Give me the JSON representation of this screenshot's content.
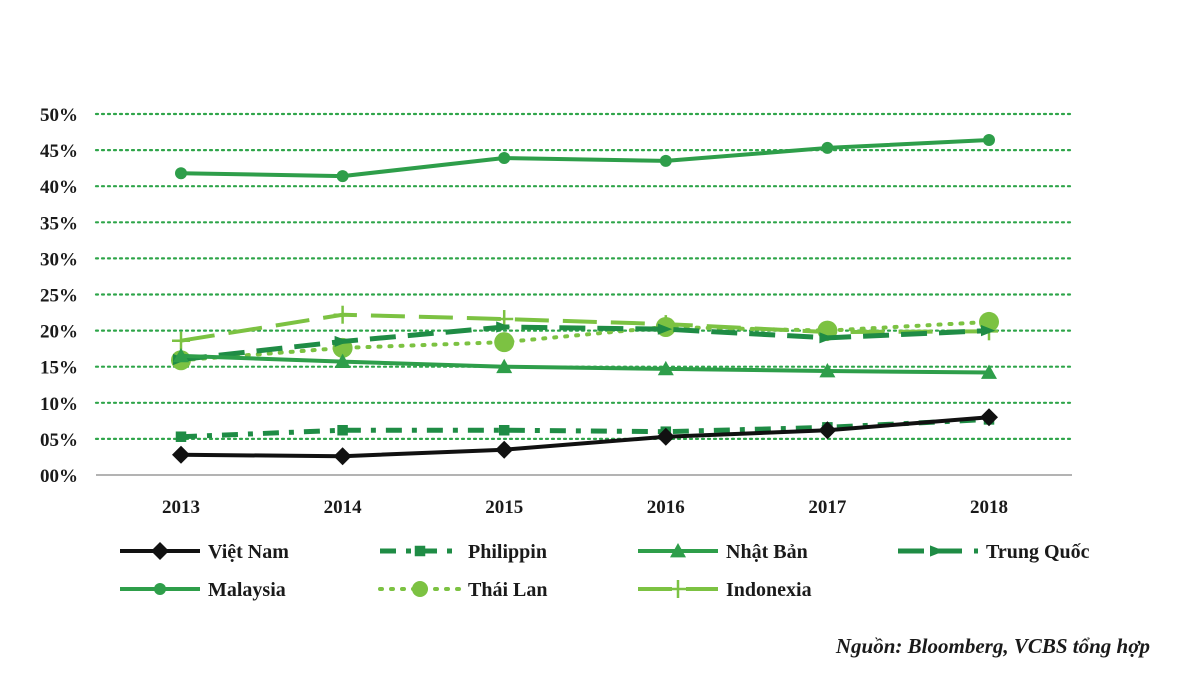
{
  "chart_data": {
    "type": "line",
    "categories": [
      "2013",
      "2014",
      "2015",
      "2016",
      "2017",
      "2018"
    ],
    "y_tick_labels": [
      "00%",
      "05%",
      "10%",
      "15%",
      "20%",
      "25%",
      "30%",
      "35%",
      "40%",
      "45%",
      "50%"
    ],
    "ylim": [
      0,
      50
    ],
    "grid": true,
    "grid_style": "dotted",
    "grid_color": "#2fa54a",
    "legend_placement": "bottom",
    "series": [
      {
        "name": "Việt Nam",
        "values": [
          2.8,
          2.6,
          3.5,
          5.3,
          6.2,
          8.0
        ],
        "color": "#111111",
        "dash": "solid",
        "marker": "diamond"
      },
      {
        "name": "Philippin",
        "values": [
          5.3,
          6.2,
          6.2,
          6.0,
          6.6,
          7.7
        ],
        "color": "#1f8c45",
        "dash": "dashdot",
        "marker": "square"
      },
      {
        "name": "Nhật Bản",
        "values": [
          16.5,
          15.7,
          15.0,
          14.7,
          14.4,
          14.2
        ],
        "color": "#2e9e4a",
        "dash": "solid",
        "marker": "triangle"
      },
      {
        "name": "Trung Quốc",
        "values": [
          16.0,
          18.5,
          20.5,
          20.2,
          19.0,
          20.0
        ],
        "color": "#1f8c45",
        "dash": "dash",
        "marker": "arrow"
      },
      {
        "name": "Malaysia",
        "values": [
          41.8,
          41.4,
          43.9,
          43.5,
          45.3,
          46.4
        ],
        "color": "#2e9e4a",
        "dash": "solid",
        "marker": "circle"
      },
      {
        "name": "Thái Lan",
        "values": [
          15.9,
          17.6,
          18.4,
          20.5,
          20.0,
          21.2
        ],
        "color": "#7cc242",
        "dash": "dot",
        "marker": "circle"
      },
      {
        "name": "Indonexia",
        "values": [
          18.6,
          22.2,
          21.6,
          20.9,
          19.8,
          19.9
        ],
        "color": "#7cc242",
        "dash": "longdash",
        "marker": "plus"
      }
    ]
  },
  "source_note": "Nguồn: Bloomberg, VCBS tổng hợp"
}
